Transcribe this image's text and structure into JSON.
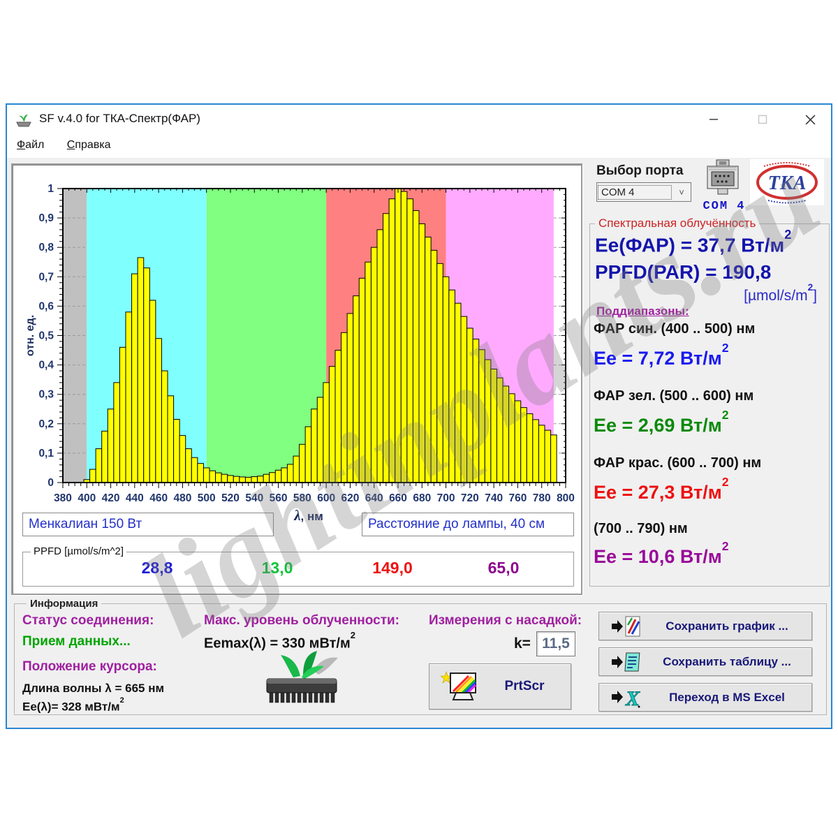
{
  "window": {
    "title": "SF v.4.0 for ТКА-Спектр(ФАР)",
    "minimize_glyph": "—",
    "maximize_glyph": "☐",
    "close_glyph": "✕"
  },
  "menu": {
    "file": "Файл",
    "help": "Справка"
  },
  "port": {
    "label": "Выбор порта",
    "selected": "COM 4",
    "caption": "COM 4"
  },
  "spectral": {
    "header": "Спектральная облучённость",
    "ee_par_text": "Ee(ФАР) = 37,7 Вт/м",
    "ppfd_text": "PPFD(PAR) = 190,8",
    "units_pre": "[µmol/s/m",
    "units_post": "]",
    "sup2": "2",
    "subranges_header": "Поддиапазоны:",
    "subranges": [
      {
        "range": "ФАР син. (400 .. 500) нм",
        "ee": "Ee = 7,72 Вт/м",
        "color": "#1a1aee"
      },
      {
        "range": "ФАР зел. (500 .. 600) нм",
        "ee": "Ee = 2,69 Вт/м",
        "color": "#0a8a0a"
      },
      {
        "range": "ФАР крас. (600 .. 700) нм",
        "ee": "Ee = 27,3 Вт/м",
        "color": "#ee1010"
      },
      {
        "range": "(700 .. 790) нм",
        "ee": "Ee = 10,6 Вт/м",
        "color": "#990999"
      }
    ]
  },
  "chart_labels": {
    "lamp": "Менкалиан 150 Вт",
    "distance": "Расстояние до лампы, 40 см",
    "ppfd_group": "PPFD [µmol/s/m^2]",
    "ppfd_values": [
      {
        "value": "28,8",
        "color": "#1c1cd8"
      },
      {
        "value": "13,0",
        "color": "#0fc33a"
      },
      {
        "value": "149,0",
        "color": "#ee1111"
      },
      {
        "value": "65,0",
        "color": "#8c078c"
      }
    ]
  },
  "info": {
    "group_label": "Информация",
    "status_label": "Статус соединения:",
    "status_value": "Прием данных...",
    "cursor_label": "Положение курсора:",
    "wavelength": "Длина волны λ  = 665 нм",
    "ee_lambda": "Ee(λ)= 328 мВт/м",
    "max_label": "Макс. уровень облученности:",
    "max_value": "Eemax(λ) = 330 мВт/м",
    "nozzle_label": "Измерения с насадкой:",
    "k_label": "k=",
    "k_value": "11,5",
    "prtscr": "PrtScr",
    "save_graph": "Сохранить график ...",
    "save_table": "Сохранить таблицу ...",
    "excel": "Переход в MS Excel"
  },
  "watermark": "lightinplants.ru",
  "chart_data": {
    "type": "bar",
    "title": "",
    "xlabel_lambda": "λ",
    "xlabel_rest": ", нм",
    "ylabel": "отн. ед.",
    "xlim": [
      380,
      800
    ],
    "ylim": [
      0,
      1
    ],
    "grid": "dashed, visible only outside colored bands",
    "legend": "none",
    "bar_color": "#ffff00",
    "bar_stroke": "#000000",
    "tick_label_color": "#20356e",
    "x_ticks": [
      380,
      400,
      420,
      440,
      460,
      480,
      500,
      520,
      540,
      560,
      580,
      600,
      620,
      640,
      660,
      680,
      700,
      720,
      740,
      760,
      780,
      800
    ],
    "y_tick_labels": [
      "0",
      "0,1",
      "0,2",
      "0,3",
      "0,4",
      "0,5",
      "0,6",
      "0,7",
      "0,8",
      "0,9",
      "1"
    ],
    "bands": [
      {
        "from": 380,
        "to": 400,
        "color": "#c0c0c0"
      },
      {
        "from": 400,
        "to": 500,
        "color": "#80ffff"
      },
      {
        "from": 500,
        "to": 600,
        "color": "#80ff80"
      },
      {
        "from": 600,
        "to": 700,
        "color": "#ff8080"
      },
      {
        "from": 700,
        "to": 790,
        "color": "#ffaaff"
      }
    ],
    "x_start": 400,
    "x_step": 5,
    "values": [
      0.01,
      0.045,
      0.115,
      0.175,
      0.25,
      0.34,
      0.46,
      0.58,
      0.71,
      0.765,
      0.73,
      0.62,
      0.49,
      0.38,
      0.295,
      0.215,
      0.16,
      0.115,
      0.085,
      0.065,
      0.05,
      0.04,
      0.033,
      0.028,
      0.024,
      0.021,
      0.019,
      0.018,
      0.02,
      0.022,
      0.028,
      0.034,
      0.042,
      0.05,
      0.062,
      0.09,
      0.13,
      0.19,
      0.25,
      0.29,
      0.34,
      0.395,
      0.45,
      0.51,
      0.575,
      0.635,
      0.695,
      0.75,
      0.8,
      0.86,
      0.915,
      0.965,
      1.0,
      0.99,
      0.965,
      0.925,
      0.88,
      0.835,
      0.79,
      0.745,
      0.7,
      0.655,
      0.61,
      0.565,
      0.525,
      0.488,
      0.452,
      0.418,
      0.386,
      0.356,
      0.328,
      0.302,
      0.278,
      0.255,
      0.234,
      0.214,
      0.195,
      0.178,
      0.162
    ]
  }
}
